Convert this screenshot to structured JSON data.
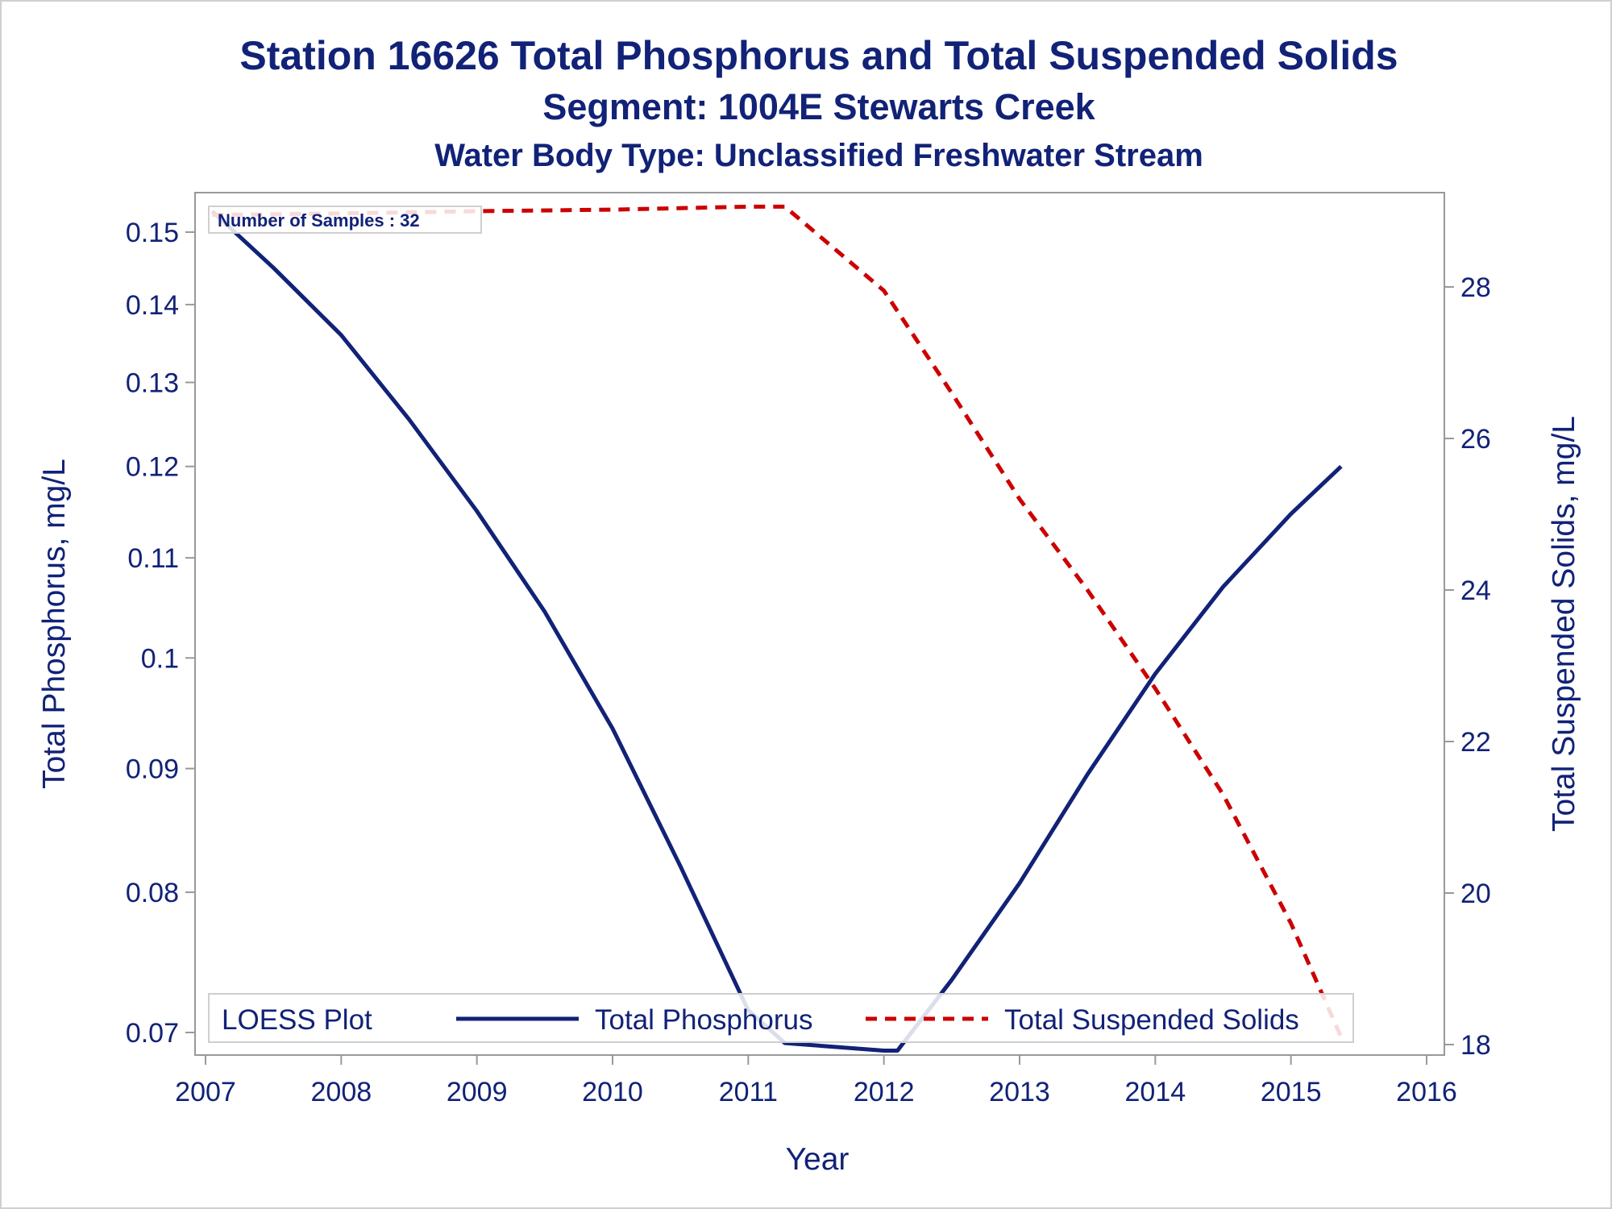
{
  "chart_data": {
    "type": "line",
    "title": "Station 16626  Total Phosphorus and Total Suspended Solids",
    "subtitle": "Segment: 1004E  Stewarts Creek",
    "subtitle2": "Water Body Type: Unclassified Freshwater Stream",
    "xlabel": "Year",
    "ylabel": "Total Phosphorus, mg/L",
    "y2label": "Total Suspended Solids, mg/L",
    "x_ticks": [
      "2007",
      "2008",
      "2009",
      "2010",
      "2011",
      "2012",
      "2013",
      "2014",
      "2015",
      "2016"
    ],
    "y_ticks": [
      "0.07",
      "0.08",
      "0.09",
      "0.1",
      "0.11",
      "0.12",
      "0.13",
      "0.14",
      "0.15"
    ],
    "y2_ticks": [
      "18",
      "20",
      "22",
      "24",
      "26",
      "28"
    ],
    "xlim": [
      2007,
      2016
    ],
    "ylim": [
      0.068,
      0.155
    ],
    "y_scale": "log",
    "y2lim": [
      18,
      29.1
    ],
    "grid": false,
    "annotation": "Number of Samples : 32",
    "legend": {
      "title": "LOESS Plot",
      "position": "bottom-inside",
      "entries": [
        "Total Phosphorus",
        "Total Suspended Solids"
      ]
    },
    "series": [
      {
        "name": "Total Phosphorus",
        "axis": "left",
        "color": "#112277",
        "style": "solid",
        "x": [
          2007.05,
          2007.5,
          2008,
          2008.5,
          2009,
          2009.5,
          2010,
          2010.5,
          2011,
          2011.27,
          2012,
          2012.1,
          2012.5,
          2013,
          2013.5,
          2014,
          2014.5,
          2015,
          2015.37
        ],
        "y": [
          0.153,
          0.145,
          0.136,
          0.1255,
          0.115,
          0.1045,
          0.0935,
          0.082,
          0.0715,
          0.0693,
          0.0688,
          0.0688,
          0.0736,
          0.0807,
          0.0895,
          0.0985,
          0.107,
          0.1147,
          0.12
        ]
      },
      {
        "name": "Total Suspended Solids",
        "axis": "right",
        "color": "#cc0000",
        "style": "dashed",
        "x": [
          2007.05,
          2008,
          2009,
          2010,
          2011,
          2011.27,
          2012,
          2012.5,
          2013,
          2013.5,
          2014,
          2014.5,
          2015,
          2015.37
        ],
        "y": [
          28.95,
          28.97,
          29.0,
          29.02,
          29.06,
          29.06,
          27.95,
          26.6,
          25.2,
          24.0,
          22.7,
          21.3,
          19.6,
          18.1
        ]
      }
    ]
  },
  "colors": {
    "text": "#112277",
    "axis": "#999999",
    "phosphorus": "#112277",
    "solids": "#cc0000"
  }
}
